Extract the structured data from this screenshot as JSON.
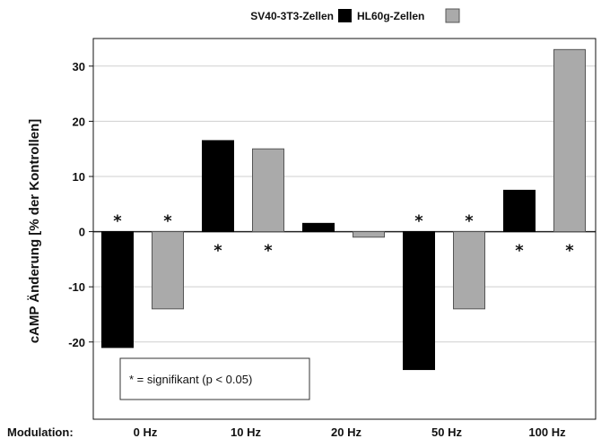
{
  "chart_data": {
    "type": "bar",
    "categories": [
      "0 Hz",
      "10 Hz",
      "20 Hz",
      "50 Hz",
      "100 Hz"
    ],
    "category_prefix": "Modulation:",
    "series": [
      {
        "name": "SV40-3T3-Zellen",
        "color": "#000000",
        "values": [
          -21,
          16.5,
          1.5,
          -25,
          7.5
        ],
        "significant": [
          true,
          true,
          false,
          true,
          true
        ]
      },
      {
        "name": "HL60g-Zellen",
        "color": "#aaaaaa",
        "values": [
          -14,
          15,
          -1,
          -14,
          33
        ],
        "significant": [
          true,
          true,
          false,
          true,
          true
        ]
      }
    ],
    "ylabel": "cAMP Änderung [% der Kontrollen]",
    "xlabel": "",
    "ylim": [
      -34,
      35
    ],
    "yticks": [
      -20,
      -10,
      0,
      10,
      20,
      30
    ],
    "significance_marker": "*",
    "annotation": "* = signifikant (p < 0.05)",
    "legend_position": "top",
    "grid": "horizontal"
  }
}
